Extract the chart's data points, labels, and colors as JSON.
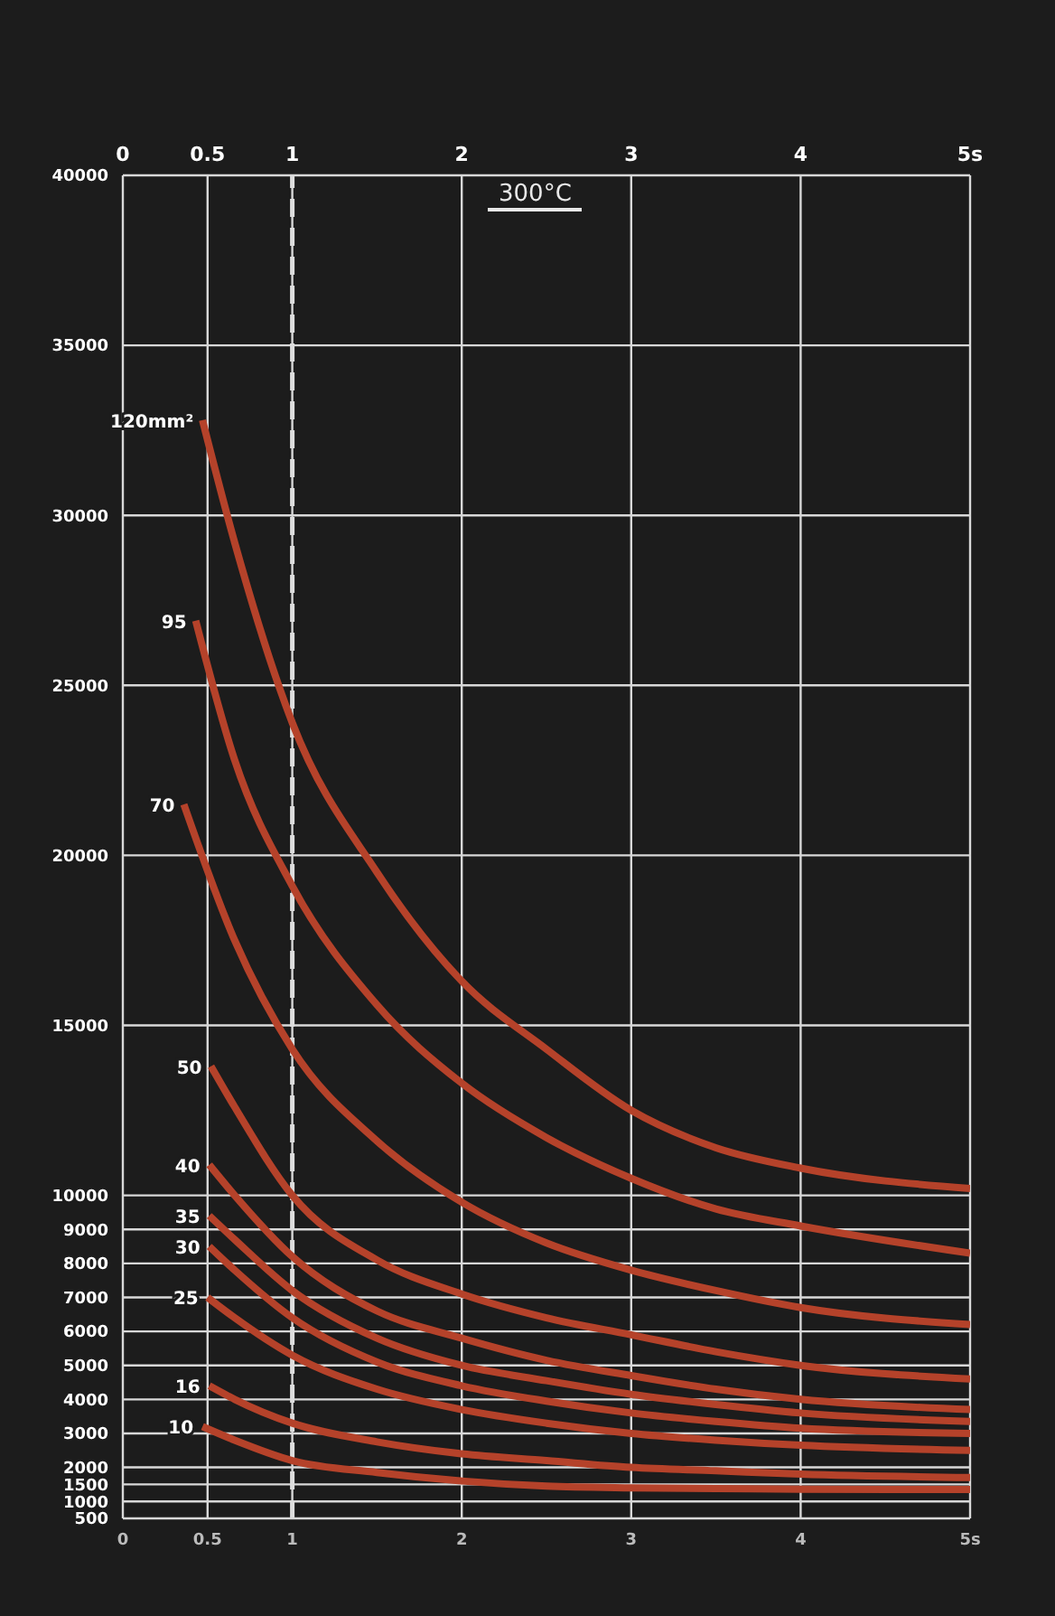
{
  "chart_data": {
    "type": "line",
    "title": "300°C",
    "xlim": [
      0,
      5
    ],
    "xticks": [
      0,
      0.5,
      1,
      2,
      3,
      4,
      {
        "value": 5,
        "label": "5s"
      }
    ],
    "x2lim": [
      0,
      5
    ],
    "x2ticks": [
      0,
      0.5,
      1,
      2,
      3,
      4,
      {
        "value": 5,
        "label": "5s"
      }
    ],
    "ylim": [
      500,
      40000
    ],
    "yticks": [
      500,
      1000,
      1500,
      2000,
      3000,
      4000,
      5000,
      6000,
      7000,
      8000,
      9000,
      10000,
      15000,
      20000,
      25000,
      30000,
      35000,
      40000
    ],
    "grid": true,
    "legend": false,
    "marker": "none",
    "line_style": "solid",
    "ref_lines": [
      {
        "axis": "x",
        "value": 1,
        "color": "#dddddd",
        "line_style": "dashed"
      }
    ],
    "series": [
      {
        "name": "120mm²",
        "color": "#b5422a",
        "x": [
          0.47,
          0.66,
          1,
          1.5,
          2,
          2.5,
          3,
          3.5,
          4,
          5
        ],
        "values": [
          32800,
          29200,
          23900,
          19500,
          16300,
          14300,
          12500,
          11400,
          10800,
          10200
        ]
      },
      {
        "name": "95",
        "color": "#b5422a",
        "x": [
          0.43,
          0.66,
          1,
          1.5,
          2,
          2.5,
          3,
          3.5,
          4,
          5
        ],
        "values": [
          26900,
          22800,
          19100,
          15600,
          13300,
          11700,
          10500,
          9600,
          9100,
          8300
        ]
      },
      {
        "name": "70",
        "color": "#b5422a",
        "x": [
          0.36,
          0.66,
          1,
          1.5,
          2,
          2.5,
          3,
          3.5,
          4,
          5
        ],
        "values": [
          21500,
          17500,
          14300,
          11600,
          9800,
          8600,
          7800,
          7200,
          6700,
          6200
        ]
      },
      {
        "name": "50",
        "color": "#b5422a",
        "x": [
          0.52,
          0.66,
          1,
          1.5,
          2,
          2.5,
          3,
          3.5,
          4,
          5
        ],
        "values": [
          13800,
          12600,
          10000,
          8100,
          7100,
          6400,
          5900,
          5400,
          5000,
          4600
        ]
      },
      {
        "name": "40",
        "color": "#b5422a",
        "x": [
          0.51,
          0.66,
          1,
          1.5,
          2,
          2.5,
          3,
          3.5,
          4,
          5
        ],
        "values": [
          10900,
          10000,
          8200,
          6600,
          5800,
          5150,
          4700,
          4300,
          4000,
          3700
        ]
      },
      {
        "name": "35",
        "color": "#b5422a",
        "x": [
          0.51,
          0.66,
          1,
          1.5,
          2,
          2.5,
          3,
          3.5,
          4,
          5
        ],
        "values": [
          9400,
          8700,
          7200,
          5800,
          5000,
          4550,
          4150,
          3850,
          3600,
          3350
        ]
      },
      {
        "name": "30",
        "color": "#b5422a",
        "x": [
          0.51,
          0.66,
          1,
          1.5,
          2,
          2.5,
          3,
          3.5,
          4,
          5
        ],
        "values": [
          8500,
          7800,
          6400,
          5100,
          4400,
          3950,
          3600,
          3350,
          3150,
          3000
        ]
      },
      {
        "name": "25",
        "color": "#b5422a",
        "x": [
          0.5,
          0.66,
          1,
          1.5,
          2,
          2.5,
          3,
          3.5,
          4,
          5
        ],
        "values": [
          7000,
          6400,
          5300,
          4300,
          3700,
          3300,
          3000,
          2800,
          2650,
          2500
        ]
      },
      {
        "name": "16",
        "color": "#b5422a",
        "x": [
          0.51,
          0.66,
          1,
          1.5,
          2,
          2.5,
          3,
          3.5,
          4,
          5
        ],
        "values": [
          4400,
          4000,
          3300,
          2750,
          2400,
          2200,
          2000,
          1900,
          1800,
          1700
        ]
      },
      {
        "name": "10",
        "color": "#b5422a",
        "x": [
          0.47,
          0.66,
          1,
          1.5,
          2,
          2.5,
          3,
          3.5,
          4,
          5
        ],
        "values": [
          3200,
          2800,
          2200,
          1850,
          1600,
          1450,
          1400,
          1380,
          1360,
          1350
        ]
      }
    ]
  }
}
